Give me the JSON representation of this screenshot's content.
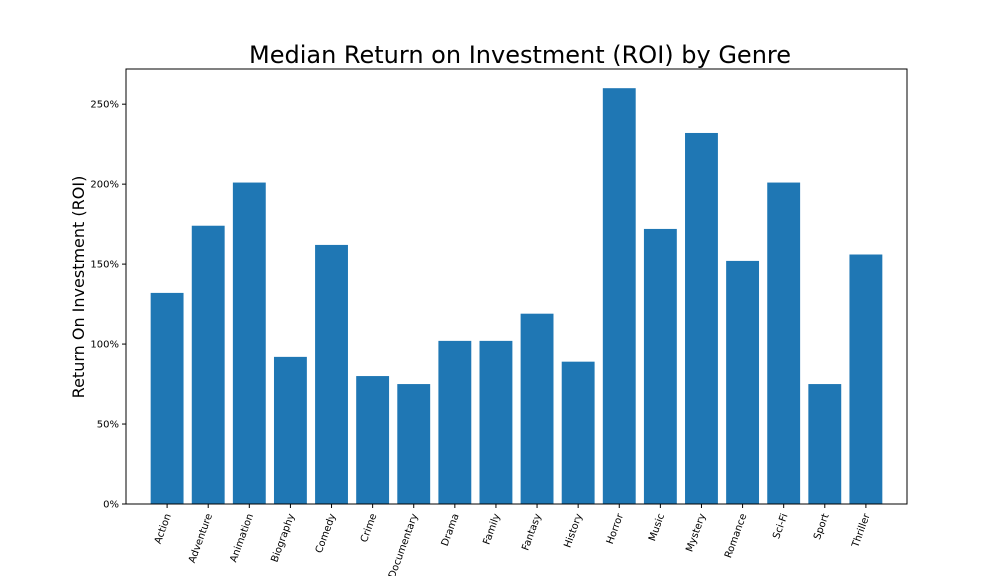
{
  "chart_data": {
    "type": "bar",
    "title": "Median Return on Investment (ROI) by Genre",
    "xlabel": "",
    "ylabel": "Return On Investment (ROI)",
    "categories": [
      "Action",
      "Adventure",
      "Animation",
      "Biography",
      "Comedy",
      "Crime",
      "Documentary",
      "Drama",
      "Family",
      "Fantasy",
      "History",
      "Horror",
      "Music",
      "Mystery",
      "Romance",
      "Sci-Fi",
      "Sport",
      "Thriller"
    ],
    "values": [
      132,
      174,
      201,
      92,
      162,
      80,
      75,
      102,
      102,
      119,
      89,
      260,
      172,
      232,
      152,
      201,
      75,
      156
    ],
    "ylim": [
      0,
      272
    ],
    "yticks": [
      0,
      50,
      100,
      150,
      200,
      250
    ],
    "ytick_labels": [
      "0%",
      "50%",
      "100%",
      "150%",
      "200%",
      "250%"
    ],
    "bar_color": "#1f77b4",
    "grid": false,
    "xtick_rotation_deg": 70
  }
}
